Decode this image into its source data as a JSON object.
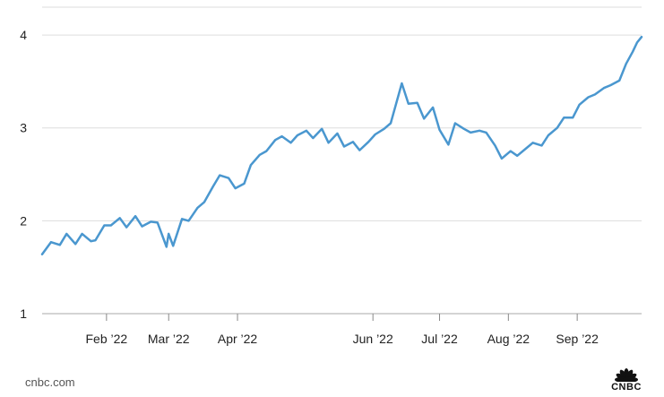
{
  "chart_data": {
    "type": "line",
    "title": "",
    "xlabel": "",
    "ylabel": "",
    "ylim": [
      1,
      4.3
    ],
    "xlim": [
      "2022-01-03",
      "2022-09-30"
    ],
    "grid": "horizontal",
    "legend": "none",
    "color": "#4a97cf",
    "y_ticks": [
      1,
      2,
      3,
      4
    ],
    "x_ticks": [
      {
        "date": "2022-02-01",
        "label": "Feb ’22"
      },
      {
        "date": "2022-03-01",
        "label": "Mar ’22"
      },
      {
        "date": "2022-04-01",
        "label": "Apr ’22"
      },
      {
        "date": "2022-06-01",
        "label": "Jun ’22"
      },
      {
        "date": "2022-07-01",
        "label": "Jul ’22"
      },
      {
        "date": "2022-08-01",
        "label": "Aug ’22"
      },
      {
        "date": "2022-09-01",
        "label": "Sep ’22"
      }
    ],
    "series": [
      {
        "x": [
          "2022-01-03",
          "2022-01-07",
          "2022-01-11",
          "2022-01-14",
          "2022-01-18",
          "2022-01-21",
          "2022-01-25",
          "2022-01-27",
          "2022-01-31",
          "2022-02-03",
          "2022-02-07",
          "2022-02-10",
          "2022-02-14",
          "2022-02-17",
          "2022-02-21",
          "2022-02-24",
          "2022-02-28",
          "2022-03-01",
          "2022-03-03",
          "2022-03-07",
          "2022-03-10",
          "2022-03-14",
          "2022-03-17",
          "2022-03-21",
          "2022-03-24",
          "2022-03-28",
          "2022-03-31",
          "2022-04-04",
          "2022-04-07",
          "2022-04-11",
          "2022-04-14",
          "2022-04-18",
          "2022-04-21",
          "2022-04-25",
          "2022-04-28",
          "2022-05-02",
          "2022-05-05",
          "2022-05-09",
          "2022-05-12",
          "2022-05-16",
          "2022-05-19",
          "2022-05-23",
          "2022-05-26",
          "2022-05-30",
          "2022-06-02",
          "2022-06-06",
          "2022-06-09",
          "2022-06-14",
          "2022-06-17",
          "2022-06-21",
          "2022-06-24",
          "2022-06-28",
          "2022-07-01",
          "2022-07-05",
          "2022-07-08",
          "2022-07-12",
          "2022-07-15",
          "2022-07-19",
          "2022-07-22",
          "2022-07-26",
          "2022-07-29",
          "2022-08-02",
          "2022-08-05",
          "2022-08-09",
          "2022-08-12",
          "2022-08-16",
          "2022-08-19",
          "2022-08-23",
          "2022-08-26",
          "2022-08-30",
          "2022-09-02",
          "2022-09-06",
          "2022-09-09",
          "2022-09-13",
          "2022-09-16",
          "2022-09-20",
          "2022-09-23",
          "2022-09-26",
          "2022-09-28",
          "2022-09-30"
        ],
        "values": [
          1.64,
          1.77,
          1.74,
          1.86,
          1.75,
          1.86,
          1.78,
          1.79,
          1.95,
          1.95,
          2.03,
          1.93,
          2.05,
          1.94,
          1.99,
          1.98,
          1.72,
          1.86,
          1.73,
          2.02,
          2.0,
          2.14,
          2.2,
          2.37,
          2.49,
          2.46,
          2.35,
          2.4,
          2.6,
          2.71,
          2.75,
          2.87,
          2.91,
          2.84,
          2.92,
          2.97,
          2.89,
          2.99,
          2.84,
          2.94,
          2.8,
          2.85,
          2.76,
          2.85,
          2.93,
          2.99,
          3.05,
          3.48,
          3.26,
          3.27,
          3.1,
          3.22,
          2.98,
          2.82,
          3.05,
          2.99,
          2.95,
          2.97,
          2.95,
          2.81,
          2.67,
          2.75,
          2.7,
          2.78,
          2.84,
          2.81,
          2.92,
          3.0,
          3.11,
          3.11,
          3.25,
          3.33,
          3.36,
          3.43,
          3.46,
          3.51,
          3.69,
          3.82,
          3.92,
          3.98
        ]
      }
    ]
  },
  "footer": {
    "source": "cnbc.com",
    "logo_text": "CNBC"
  }
}
